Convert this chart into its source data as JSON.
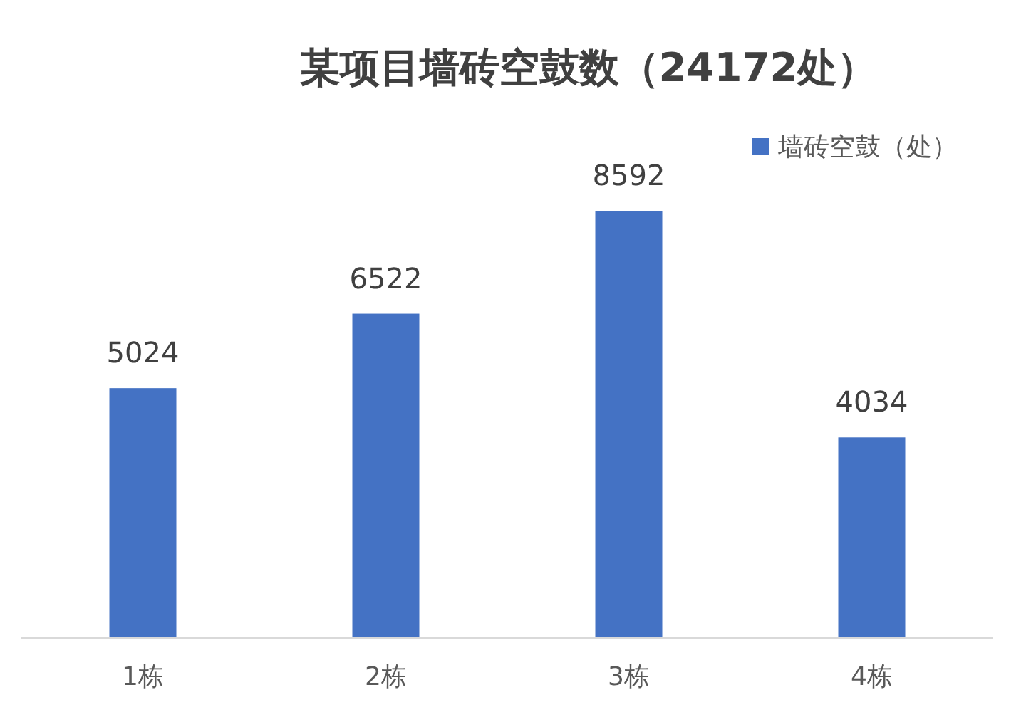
{
  "chart_data": {
    "type": "bar",
    "title": "某项目墙砖空鼓数（24172处）",
    "categories": [
      "1栋",
      "2栋",
      "3栋",
      "4栋"
    ],
    "series": [
      {
        "name": "墙砖空鼓（处）",
        "color": "#4472c4",
        "values": [
          5024,
          6522,
          8592,
          4034
        ]
      }
    ],
    "data_labels": true,
    "legend": "top right",
    "grid": false
  }
}
